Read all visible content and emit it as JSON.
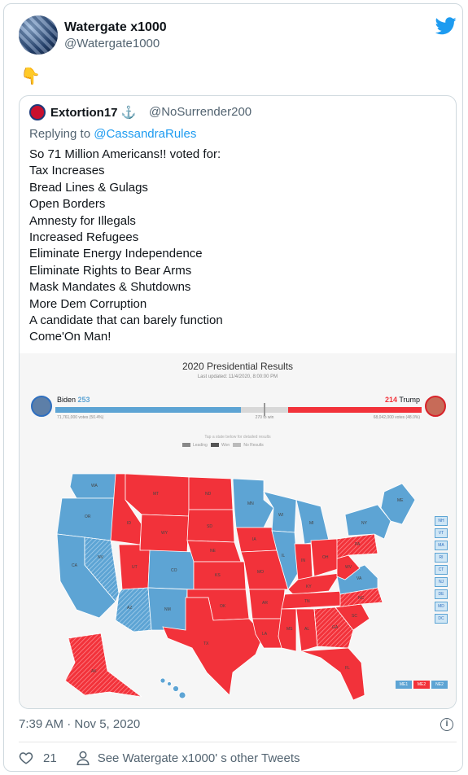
{
  "tweet": {
    "name": "Watergate x1000",
    "handle": "@Watergate1000",
    "emoji": "👇",
    "timestamp": "7:39 AM · Nov 5, 2020",
    "likes": "21",
    "see_more": "See Watergate x1000' s other Tweets",
    "info_icon": "i"
  },
  "quote": {
    "name": "Extortion17 ⚓",
    "handle": "@NoSurrender200",
    "reply_prefix": "Replying to ",
    "reply_user": "@CassandraRules",
    "lines": [
      "So 71 Million Americans!! voted for:",
      "Tax Increases",
      "Bread Lines & Gulags",
      "Open Borders",
      "Amnesty for Illegals",
      "Increased Refugees",
      "Eliminate Energy Independence",
      "Eliminate Rights to Bear Arms",
      "Mask Mandates & Shutdowns",
      "More Dem Corruption",
      "A candidate that can barely function",
      "Come'On Man!"
    ]
  },
  "results": {
    "title": "2020 Presidential Results",
    "updated": "Last updated: 11/4/2020, 8:00:00 PM",
    "biden_name": "Biden",
    "biden_ev": "253",
    "trump_name": "Trump",
    "trump_ev": "214",
    "biden_votes": "71,761,000 votes (50.4%)",
    "trump_votes": "68,042,000 votes (48.0%)",
    "to_win": "270 to win",
    "hint": "Tap a state below for detailed results",
    "legend": [
      "Leading",
      "Won",
      "No Results"
    ],
    "ne_states": [
      "NH",
      "VT",
      "MA",
      "RI",
      "CT",
      "NJ",
      "DE",
      "MD",
      "DC"
    ],
    "me_tags": [
      "ME1",
      "ME2",
      "NE2"
    ],
    "colors": {
      "dem": "#5da4d4",
      "rep": "#f2323a",
      "pending": "#d8d8d8"
    }
  }
}
